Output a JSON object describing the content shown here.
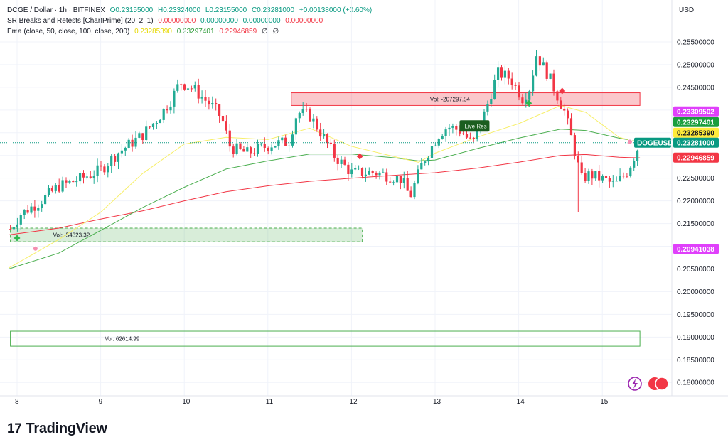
{
  "header": {
    "symbol_line": {
      "title": "DOGE / Dollar · 1h · BITFINEX",
      "open": "O0.23155000",
      "high": "H0.23324000",
      "low": "L0.23155000",
      "close": "C0.23281000",
      "change": "+0.00138000 (+0.60%)"
    },
    "indicator_1": {
      "name": "SR Breaks and Retests [ChartPrime] (20, 2, 1)",
      "values": [
        "0.00000000",
        "0.00000000",
        "0.00000000",
        "0.00000000"
      ]
    },
    "indicator_2": {
      "name": "Ema (close, 50, close, 100, close, 200)",
      "values": [
        "0.23285390",
        "0.23297401",
        "0.22946859",
        "∅",
        "∅"
      ]
    }
  },
  "currency": "USD",
  "brand": "TradingView",
  "colors": {
    "up": "#22ab94",
    "down": "#f23645",
    "ema50": "#f7ef6a",
    "ema100": "#4caf50",
    "ema200": "#f23645",
    "price_tag": "#089981",
    "sr_tag": "#e040fb"
  },
  "chart_data": {
    "type": "candlestick",
    "symbol": "DOGE / Dollar",
    "interval": "1h",
    "exchange": "BITFINEX",
    "y_range": [
      0.178,
      0.2575
    ],
    "y_ticks": [
      "0.25500000",
      "0.25000000",
      "0.24500000",
      "0.24000000",
      "0.23500000",
      "0.23000000",
      "0.22500000",
      "0.22000000",
      "0.21500000",
      "0.21000000",
      "0.20500000",
      "0.20000000",
      "0.19500000",
      "0.19000000",
      "0.18500000",
      "0.18000000"
    ],
    "x_ticks": [
      "8",
      "9",
      "10",
      "11",
      "12",
      "13",
      "14",
      "15"
    ],
    "x_range_days": [
      7.9,
      15.65
    ],
    "price_path": [
      [
        7.92,
        0.2138
      ],
      [
        8.05,
        0.2172
      ],
      [
        8.25,
        0.2195
      ],
      [
        8.5,
        0.2232
      ],
      [
        8.75,
        0.2248
      ],
      [
        9.0,
        0.2268
      ],
      [
        9.2,
        0.2305
      ],
      [
        9.5,
        0.2345
      ],
      [
        9.7,
        0.2385
      ],
      [
        9.85,
        0.2425
      ],
      [
        9.95,
        0.2462
      ],
      [
        10.1,
        0.2448
      ],
      [
        10.35,
        0.2405
      ],
      [
        10.45,
        0.2382
      ],
      [
        10.55,
        0.2318
      ],
      [
        10.75,
        0.2305
      ],
      [
        11.05,
        0.2325
      ],
      [
        11.25,
        0.233
      ],
      [
        11.35,
        0.2395
      ],
      [
        11.5,
        0.2388
      ],
      [
        11.65,
        0.2345
      ],
      [
        11.8,
        0.2298
      ],
      [
        12.0,
        0.2262
      ],
      [
        12.1,
        0.2262
      ],
      [
        12.3,
        0.2262
      ],
      [
        12.6,
        0.2248
      ],
      [
        12.7,
        0.2208
      ],
      [
        12.85,
        0.2285
      ],
      [
        13.05,
        0.2348
      ],
      [
        13.15,
        0.2363
      ],
      [
        13.3,
        0.2355
      ],
      [
        13.45,
        0.2325
      ],
      [
        13.55,
        0.237
      ],
      [
        13.75,
        0.2482
      ],
      [
        13.9,
        0.247
      ],
      [
        14.05,
        0.2425
      ],
      [
        14.15,
        0.2455
      ],
      [
        14.2,
        0.2525
      ],
      [
        14.35,
        0.2478
      ],
      [
        14.55,
        0.2395
      ],
      [
        14.65,
        0.2325
      ],
      [
        14.75,
        0.2248
      ],
      [
        14.85,
        0.2258
      ],
      [
        15.0,
        0.2248
      ],
      [
        15.15,
        0.2235
      ],
      [
        15.3,
        0.2265
      ],
      [
        15.45,
        0.2328
      ]
    ],
    "ema_50": [
      [
        7.9,
        0.2052
      ],
      [
        8.5,
        0.2115
      ],
      [
        9.0,
        0.2175
      ],
      [
        9.5,
        0.226
      ],
      [
        10.0,
        0.2325
      ],
      [
        10.5,
        0.234
      ],
      [
        11.0,
        0.2335
      ],
      [
        11.5,
        0.236
      ],
      [
        12.0,
        0.232
      ],
      [
        12.5,
        0.2298
      ],
      [
        12.8,
        0.2285
      ],
      [
        13.0,
        0.2305
      ],
      [
        13.5,
        0.234
      ],
      [
        14.0,
        0.237
      ],
      [
        14.5,
        0.241
      ],
      [
        14.8,
        0.2395
      ],
      [
        15.2,
        0.234
      ],
      [
        15.45,
        0.23285
      ]
    ],
    "ema_100": [
      [
        7.9,
        0.205
      ],
      [
        8.5,
        0.2085
      ],
      [
        9.0,
        0.2135
      ],
      [
        9.5,
        0.2185
      ],
      [
        10.0,
        0.223
      ],
      [
        10.5,
        0.227
      ],
      [
        11.0,
        0.2288
      ],
      [
        11.5,
        0.2303
      ],
      [
        12.0,
        0.2303
      ],
      [
        12.5,
        0.2295
      ],
      [
        12.8,
        0.2288
      ],
      [
        13.0,
        0.229
      ],
      [
        13.5,
        0.2315
      ],
      [
        14.0,
        0.2338
      ],
      [
        14.5,
        0.2358
      ],
      [
        14.8,
        0.2355
      ],
      [
        15.2,
        0.2338
      ],
      [
        15.45,
        0.23297
      ]
    ],
    "ema_200": [
      [
        7.9,
        0.2125
      ],
      [
        8.5,
        0.214
      ],
      [
        9.0,
        0.216
      ],
      [
        9.5,
        0.2178
      ],
      [
        10.0,
        0.22
      ],
      [
        10.5,
        0.222
      ],
      [
        11.0,
        0.2233
      ],
      [
        11.5,
        0.2243
      ],
      [
        12.0,
        0.225
      ],
      [
        12.5,
        0.2256
      ],
      [
        13.0,
        0.2262
      ],
      [
        13.5,
        0.2272
      ],
      [
        14.0,
        0.2285
      ],
      [
        14.5,
        0.23
      ],
      [
        14.8,
        0.2302
      ],
      [
        15.2,
        0.2296
      ],
      [
        15.45,
        0.22947
      ]
    ],
    "zones": [
      {
        "type": "resistance",
        "x_from": 11.28,
        "x_to": 15.45,
        "y_top": 0.2438,
        "y_bottom": 0.241,
        "label": "Vol: -207297.54"
      },
      {
        "type": "support",
        "x_from": 7.92,
        "x_to": 12.13,
        "y_top": 0.214,
        "y_bottom": 0.211,
        "label": "Vol: -54323.32"
      },
      {
        "type": "support",
        "x_from": 7.92,
        "x_to": 15.45,
        "y_top": 0.1913,
        "y_bottom": 0.188,
        "label": "Vol: 62614.99"
      }
    ],
    "markers": [
      {
        "type": "green-diamond",
        "x": 8.0,
        "y": 0.2118
      },
      {
        "type": "pink-dot",
        "x": 8.22,
        "y": 0.2095
      },
      {
        "type": "red-diamond",
        "x": 12.1,
        "y": 0.2298
      },
      {
        "type": "green-diamond",
        "x": 14.12,
        "y": 0.2415
      },
      {
        "type": "red-diamond",
        "x": 14.52,
        "y": 0.2442
      },
      {
        "type": "pink-dot",
        "x": 15.33,
        "y": 0.233
      }
    ],
    "retest_label": {
      "text": "Live Res",
      "x": 13.48,
      "y": 0.2365
    },
    "price_line": 0.23281,
    "axis_tags": [
      {
        "text": "0.23309502",
        "value": 0.23309502,
        "bg": "#e040fb",
        "fg": "#ffffff"
      },
      {
        "text": "0.23297401",
        "value": 0.23297401,
        "bg": "#1b9e3e",
        "fg": "#ffffff"
      },
      {
        "text": "0.23285390",
        "value": 0.2328539,
        "bg": "#ffeb3b",
        "fg": "#131722"
      },
      {
        "text": "0.23281000",
        "value": 0.23281,
        "bg": "#089981",
        "fg": "#ffffff",
        "symbol": "DOGEUSD"
      },
      {
        "text": "0.22946859",
        "value": 0.22946859,
        "bg": "#f23645",
        "fg": "#ffffff"
      },
      {
        "text": "0.20941038",
        "value": 0.20941038,
        "bg": "#e040fb",
        "fg": "#ffffff"
      }
    ]
  }
}
